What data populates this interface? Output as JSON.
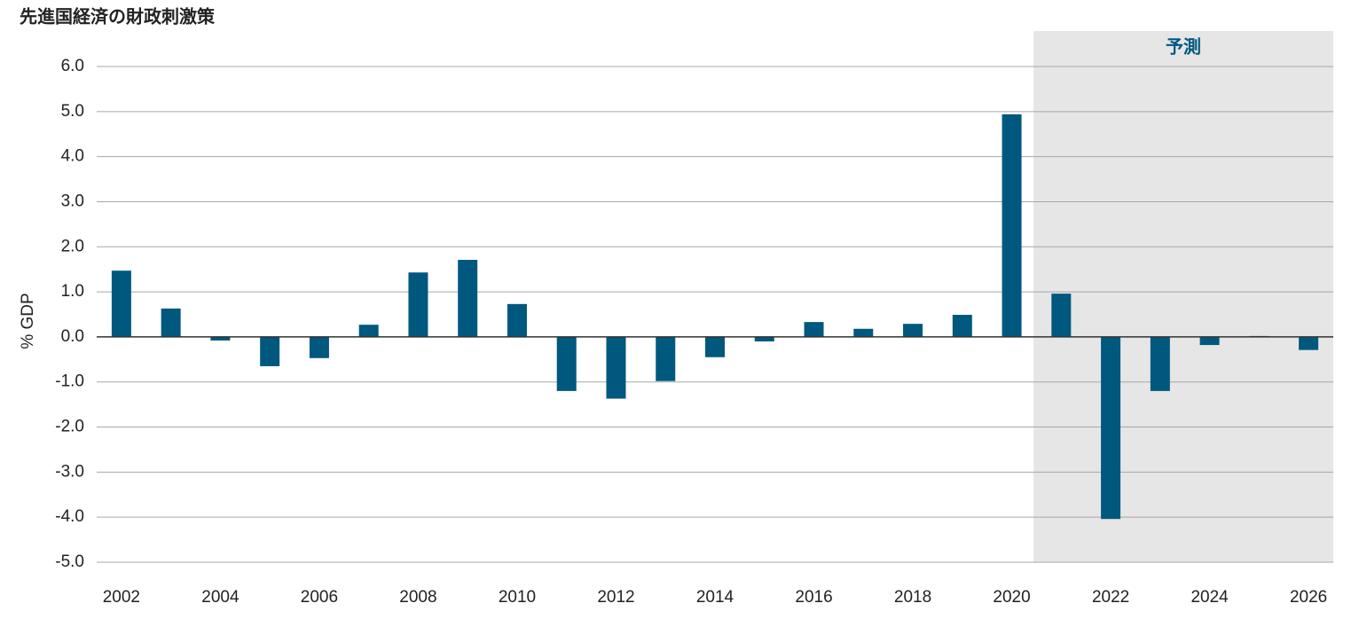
{
  "chart_data": {
    "type": "bar",
    "title": "先進国経済の財政刺激策",
    "y_label": "% GDP",
    "annotation": "予測",
    "categories": [
      "2002",
      null,
      "2004",
      null,
      "2006",
      null,
      "2008",
      null,
      "2010",
      null,
      "2012",
      null,
      "2014",
      null,
      "2016",
      null,
      "2018",
      null,
      "2020",
      null,
      "2022",
      null,
      "2024",
      null,
      "2026"
    ],
    "values": [
      1.47,
      0.63,
      -0.08,
      -0.65,
      -0.47,
      0.27,
      1.43,
      1.71,
      0.73,
      -1.2,
      -1.37,
      -0.98,
      -0.45,
      -0.1,
      0.33,
      0.18,
      0.29,
      0.49,
      4.94,
      0.96,
      -4.04,
      -1.2,
      -0.18,
      0.02,
      -0.29
    ],
    "color": "#00587f",
    "ylim": [
      -5,
      6
    ],
    "yticks": [
      {
        "value": -5,
        "label": "-5.0"
      },
      {
        "value": -4,
        "label": "-4.0"
      },
      {
        "value": -3,
        "label": "-3.0"
      },
      {
        "value": -2,
        "label": "-2.0"
      },
      {
        "value": -1,
        "label": "-1.0"
      },
      {
        "value": 0,
        "label": "0.0"
      },
      {
        "value": 1,
        "label": "1.0"
      },
      {
        "value": 2,
        "label": "2.0"
      },
      {
        "value": 3,
        "label": "3.0"
      },
      {
        "value": 4,
        "label": "4.0"
      },
      {
        "value": 5,
        "label": "5.0"
      },
      {
        "value": 6,
        "label": "6.0"
      }
    ],
    "grid": true
  }
}
